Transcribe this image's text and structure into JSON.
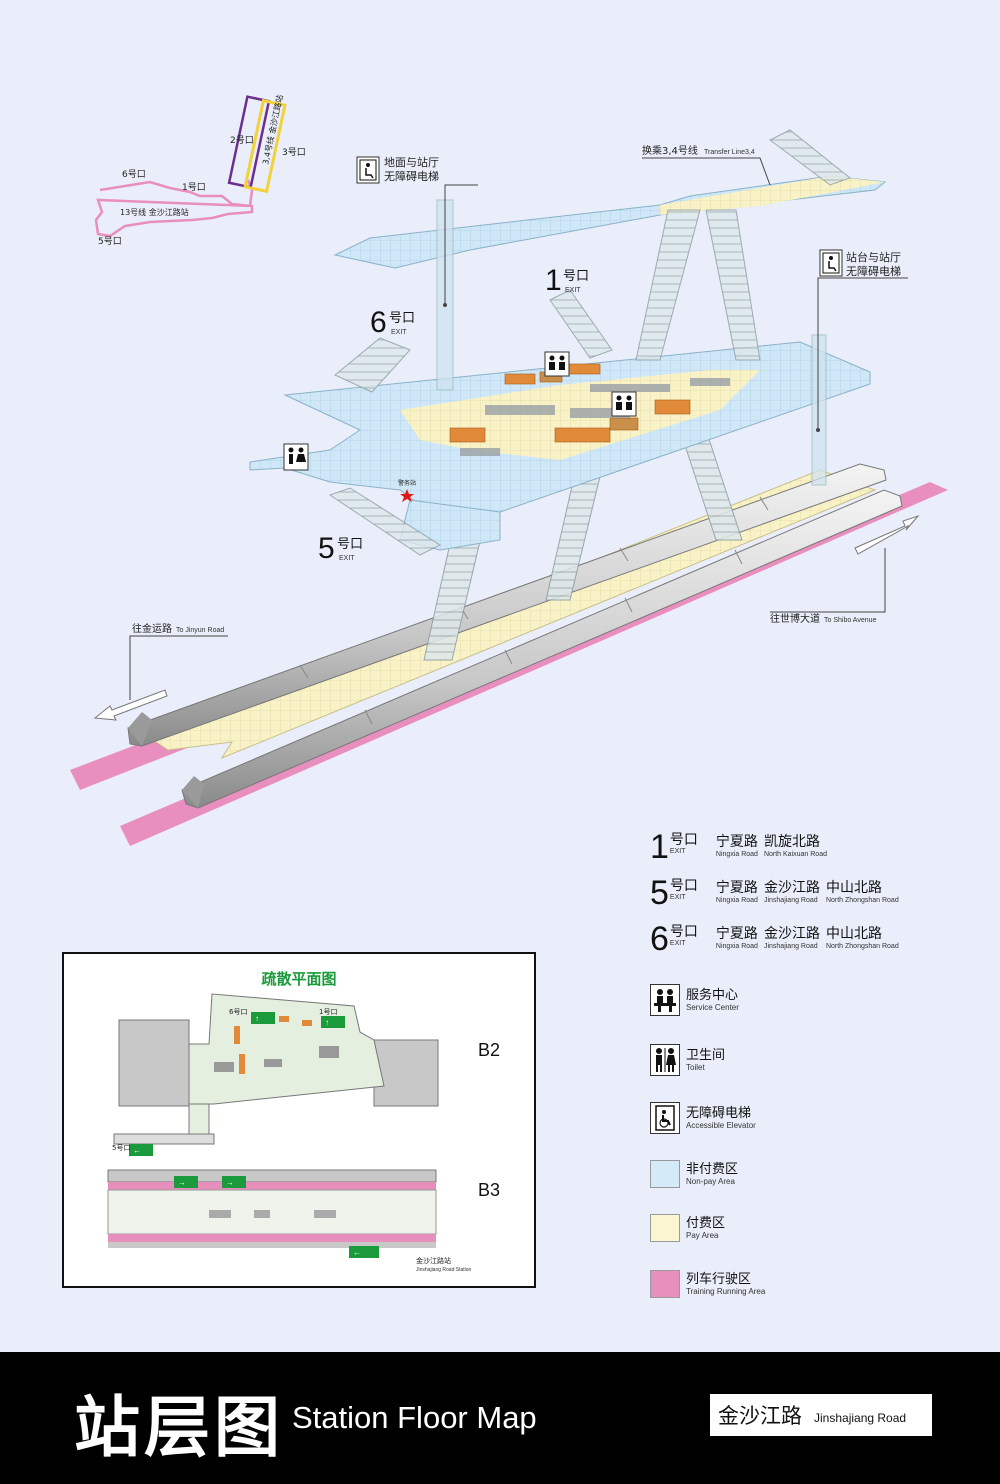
{
  "locator": {
    "exit2": "2号口",
    "exit3": "3号口",
    "exit6": "6号口",
    "exit1": "1号口",
    "exit5": "5号口",
    "line34_label": "3,4号线 金沙江路站",
    "line13_label": "13号线 金沙江路站"
  },
  "callouts": {
    "elev_ground": "地面与站厅\n无障碍电梯",
    "transfer": "换乘3,4号线",
    "transfer_en": "Transfer Line3,4",
    "elev_platform": "站台与站厅\n无障碍电梯",
    "police": "警务站",
    "to_jinyun_cn": "往金运路",
    "to_jinyun_en": "To Jinyun Road",
    "to_shibo_cn": "往世博大道",
    "to_shibo_en": "To Shibo Avenue"
  },
  "map_exits": {
    "exit1_num": "1",
    "exit6_num": "6",
    "exit5_num": "5",
    "hk": "号口",
    "exit_en": "EXIT"
  },
  "exits_legend": [
    {
      "num": "1",
      "hk": "号口",
      "en": "EXIT",
      "roads": [
        {
          "cn": "宁夏路",
          "en": "Ningxia Road"
        },
        {
          "cn": "凯旋北路",
          "en": "North Kaixuan Road"
        }
      ]
    },
    {
      "num": "5",
      "hk": "号口",
      "en": "EXIT",
      "roads": [
        {
          "cn": "宁夏路",
          "en": "Ningxia Road"
        },
        {
          "cn": "金沙江路",
          "en": "Jinshajiang Road"
        },
        {
          "cn": "中山北路",
          "en": "North Zhongshan Road"
        }
      ]
    },
    {
      "num": "6",
      "hk": "号口",
      "en": "EXIT",
      "roads": [
        {
          "cn": "宁夏路",
          "en": "Ningxia Road"
        },
        {
          "cn": "金沙江路",
          "en": "Jinshajiang Road"
        },
        {
          "cn": "中山北路",
          "en": "North Zhongshan Road"
        }
      ]
    }
  ],
  "facility_legend": {
    "service": {
      "cn": "服务中心",
      "en": "Service Center"
    },
    "toilet": {
      "cn": "卫生间",
      "en": "Toilet"
    },
    "elevator": {
      "cn": "无障碍电梯",
      "en": "Accessible Elevator"
    },
    "nonpay": {
      "cn": "非付费区",
      "en": "Non-pay Area",
      "color": "#d4eaf8"
    },
    "pay": {
      "cn": "付费区",
      "en": "Pay Area",
      "color": "#fbf6cf"
    },
    "train": {
      "cn": "列车行驶区",
      "en": "Training Running Area",
      "color": "#e68fbd"
    }
  },
  "evacuation": {
    "title": "疏散平面图",
    "b2": "B2",
    "b3": "B3",
    "exit6": "6号口",
    "exit1": "1号口",
    "exit5": "5号口",
    "station_cn": "金沙江路站",
    "station_en": "Jinshajiang Road Station"
  },
  "footer": {
    "title_cn": "站层图",
    "title_en": "Station Floor Map",
    "station_cn": "金沙江路",
    "station_en": "Jinshajiang Road"
  },
  "colors": {
    "nonpay": "#cfe7f6",
    "pay": "#f8f2c6",
    "track": "#e98fbf",
    "line13": "#e98fbf",
    "line3": "#f3d13a",
    "line4": "#6a2f8f",
    "exit_green": "#1a9a3a"
  }
}
